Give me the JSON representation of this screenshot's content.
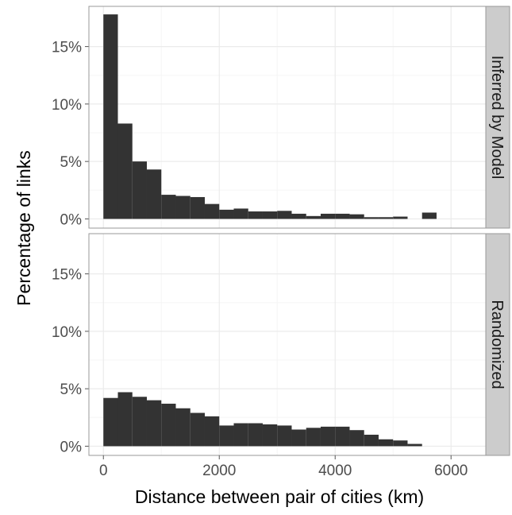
{
  "chart_data": {
    "type": "bar",
    "subtype": "faceted-histogram",
    "xlabel": "Distance between pair of cities (km)",
    "ylabel": "Percentage of links",
    "xlim": [
      -250,
      6600
    ],
    "ylim": [
      -0.8,
      18.5
    ],
    "x_ticks": [
      0,
      2000,
      4000,
      6000
    ],
    "x_tick_labels": [
      "0",
      "2000",
      "4000",
      "6000"
    ],
    "y_ticks": [
      0,
      5,
      10,
      15
    ],
    "y_tick_labels": [
      "0%",
      "5%",
      "10%",
      "15%"
    ],
    "bin_width": 250,
    "grid": true,
    "legend": "none",
    "colors": {
      "bar": "#333333",
      "panel_bg": "#ffffff",
      "grid": "#ebebeb",
      "strip_bg": "#cccccc"
    },
    "bin_starts": [
      0,
      250,
      500,
      750,
      1000,
      1250,
      1500,
      1750,
      2000,
      2250,
      2500,
      2750,
      3000,
      3250,
      3500,
      3750,
      4000,
      4250,
      4500,
      4750,
      5000,
      5250,
      5500
    ],
    "panels": [
      {
        "name": "Inferred by Model",
        "values": [
          17.8,
          8.3,
          5.0,
          4.3,
          2.1,
          2.0,
          1.9,
          1.3,
          0.8,
          0.9,
          0.65,
          0.65,
          0.7,
          0.45,
          0.25,
          0.45,
          0.45,
          0.4,
          0.15,
          0.15,
          0.2,
          0.0,
          0.55
        ]
      },
      {
        "name": "Randomized",
        "values": [
          4.2,
          4.7,
          4.3,
          4.0,
          3.7,
          3.3,
          2.9,
          2.6,
          1.8,
          2.0,
          2.0,
          1.9,
          1.8,
          1.45,
          1.6,
          1.7,
          1.7,
          1.4,
          1.0,
          0.6,
          0.5,
          0.2,
          0.0
        ]
      }
    ]
  }
}
